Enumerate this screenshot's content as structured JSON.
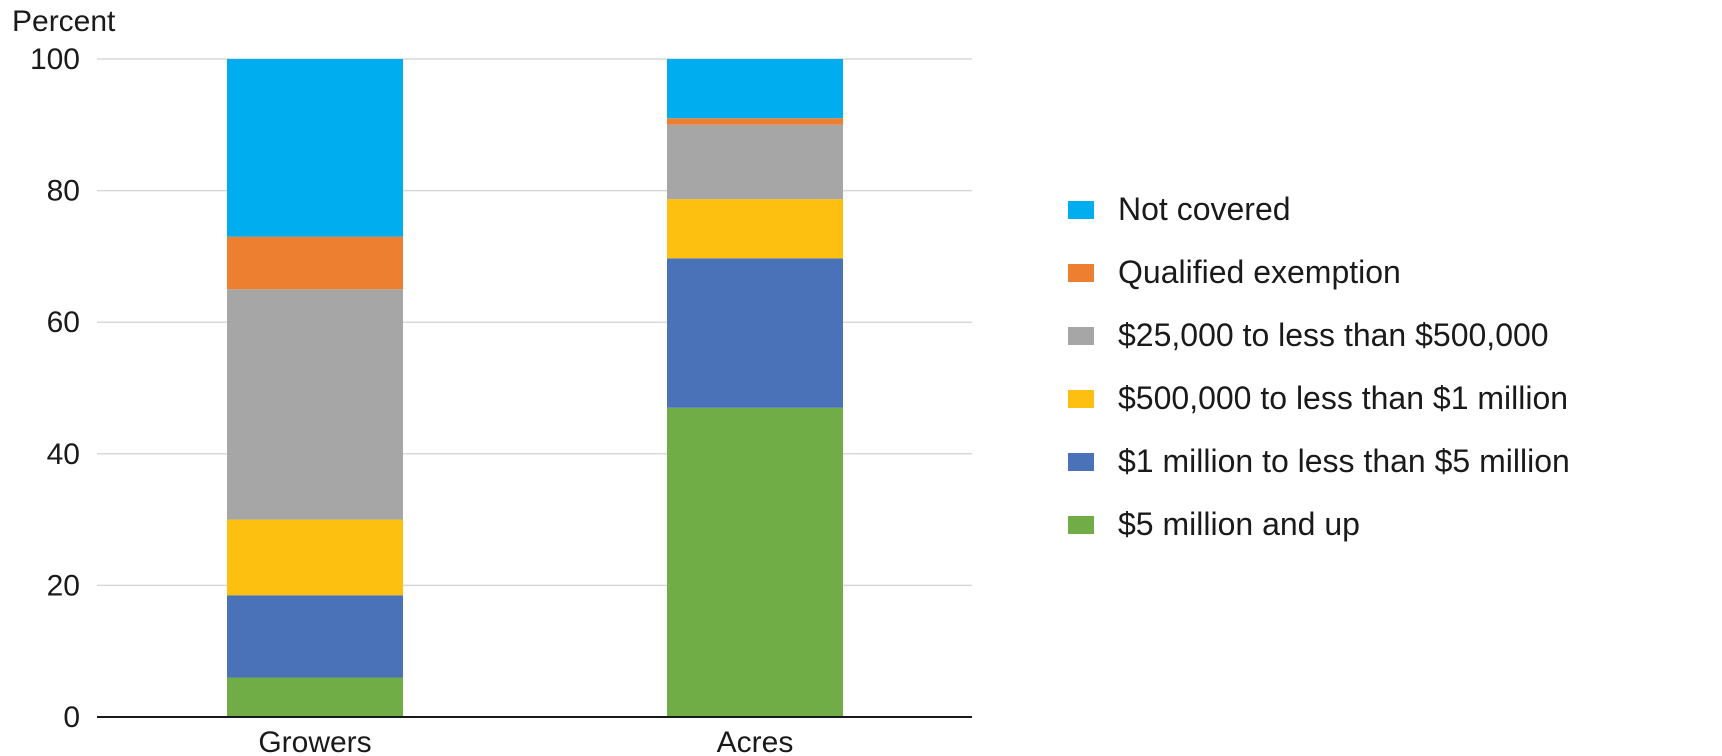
{
  "chart_data": {
    "type": "bar",
    "stacked": true,
    "ylabel": "Percent",
    "ylim": [
      0,
      100
    ],
    "yticks": [
      0,
      20,
      40,
      60,
      80,
      100
    ],
    "grid": true,
    "legend_position": "right",
    "categories": [
      "Growers",
      "Acres"
    ],
    "series": [
      {
        "name": "$5 million and up",
        "color": "#70AD47",
        "values": [
          6,
          47
        ]
      },
      {
        "name": "$1 million to less than $5 million",
        "color": "#4A72B8",
        "values": [
          12.5,
          22.7
        ]
      },
      {
        "name": "$500,000 to less than $1 million",
        "color": "#FDC010",
        "values": [
          11.5,
          9
        ]
      },
      {
        "name": "$25,000 to less than $500,000",
        "color": "#A5A6A5",
        "values": [
          35,
          11.3
        ]
      },
      {
        "name": "Qualified exemption",
        "color": "#ED7F31",
        "values": [
          8,
          1
        ]
      },
      {
        "name": "Not covered",
        "color": "#00ADEF",
        "values": [
          27,
          9
        ]
      }
    ]
  }
}
